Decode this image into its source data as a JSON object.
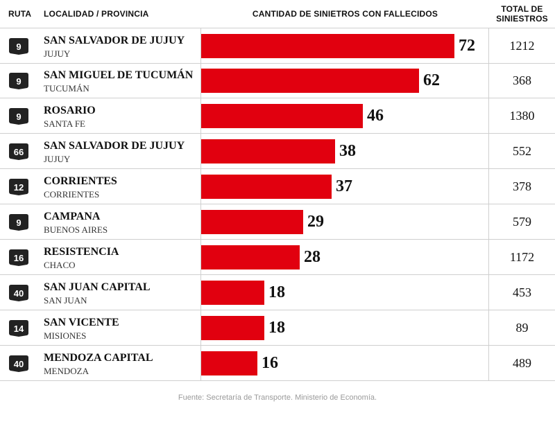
{
  "headers": {
    "ruta": "RUTA",
    "localidad": "LOCALIDAD / PROVINCIA",
    "cantidad": "CANTIDAD DE SINIETROS CON FALLECIDOS",
    "total_line1": "TOTAL DE",
    "total_line2": "SINIESTROS"
  },
  "colors": {
    "bar": "#e1000f",
    "badge": "#222222",
    "grid": "#cfcfcf"
  },
  "chart_data": {
    "type": "bar",
    "orientation": "horizontal",
    "title": "CANTIDAD DE SINIETROS CON FALLECIDOS",
    "ylabel": "LOCALIDAD / PROVINCIA",
    "xlim": [
      0,
      72
    ],
    "rows": [
      {
        "ruta": "9",
        "localidad": "SAN SALVADOR DE JUJUY",
        "provincia": "JUJUY",
        "fallecidos": 72,
        "total": "1212"
      },
      {
        "ruta": "9",
        "localidad": "SAN MIGUEL DE TUCUMÁN",
        "provincia": "TUCUMÁN",
        "fallecidos": 62,
        "total": "368"
      },
      {
        "ruta": "9",
        "localidad": "ROSARIO",
        "provincia": "SANTA FE",
        "fallecidos": 46,
        "total": "1380"
      },
      {
        "ruta": "66",
        "localidad": "SAN SALVADOR DE JUJUY",
        "provincia": "JUJUY",
        "fallecidos": 38,
        "total": "552"
      },
      {
        "ruta": "12",
        "localidad": "CORRIENTES",
        "provincia": "CORRIENTES",
        "fallecidos": 37,
        "total": "378"
      },
      {
        "ruta": "9",
        "localidad": "CAMPANA",
        "provincia": "BUENOS AIRES",
        "fallecidos": 29,
        "total": "579"
      },
      {
        "ruta": "16",
        "localidad": "RESISTENCIA",
        "provincia": "CHACO",
        "fallecidos": 28,
        "total": "1172"
      },
      {
        "ruta": "40",
        "localidad": "SAN JUAN CAPITAL",
        "provincia": "SAN JUAN",
        "fallecidos": 18,
        "total": "453"
      },
      {
        "ruta": "14",
        "localidad": "SAN VICENTE",
        "provincia": "MISIONES",
        "fallecidos": 18,
        "total": "89"
      },
      {
        "ruta": "40",
        "localidad": "MENDOZA CAPITAL",
        "provincia": "MENDOZA",
        "fallecidos": 16,
        "total": "489"
      }
    ]
  },
  "source": "Fuente: Secretaría de Transporte. Ministerio de Economía."
}
